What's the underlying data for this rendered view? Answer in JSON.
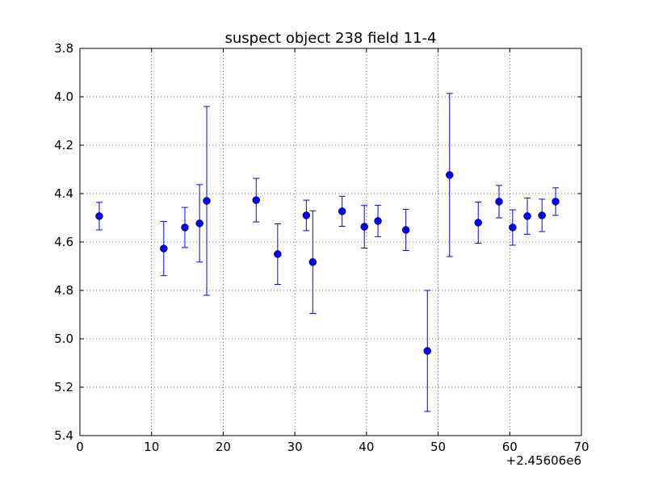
{
  "chart_data": {
    "type": "scatter",
    "title": "suspect object 238 field 11-4",
    "x": [
      2.7,
      11.7,
      14.65,
      16.7,
      17.7,
      24.6,
      27.6,
      31.6,
      32.5,
      36.6,
      39.7,
      41.6,
      45.5,
      48.5,
      51.6,
      55.6,
      58.5,
      60.4,
      62.45,
      64.5,
      66.4
    ],
    "y": [
      4.493,
      4.627,
      4.54,
      4.523,
      4.43,
      4.427,
      4.65,
      4.49,
      4.683,
      4.473,
      4.537,
      4.513,
      4.55,
      5.05,
      4.323,
      4.52,
      4.433,
      4.54,
      4.493,
      4.49,
      4.433
    ],
    "errors": [
      0.057,
      0.112,
      0.083,
      0.16,
      0.39,
      0.09,
      0.125,
      0.063,
      0.212,
      0.062,
      0.088,
      0.065,
      0.085,
      0.25,
      0.337,
      0.085,
      0.067,
      0.073,
      0.075,
      0.067,
      0.057
    ],
    "color": "#0000ff",
    "xlim": [
      0,
      70
    ],
    "xticks": [
      0,
      10,
      20,
      30,
      40,
      50,
      60,
      70
    ],
    "x_offset_label": "+2.45606e6",
    "ylim": [
      5.4,
      3.8
    ],
    "yticks": [
      3.8,
      {
        "value": 4,
        "label": "4.0"
      },
      4.2,
      4.4,
      4.6,
      4.8,
      {
        "value": 5,
        "label": "5.0"
      },
      5.2,
      5.4
    ],
    "grid": true
  }
}
